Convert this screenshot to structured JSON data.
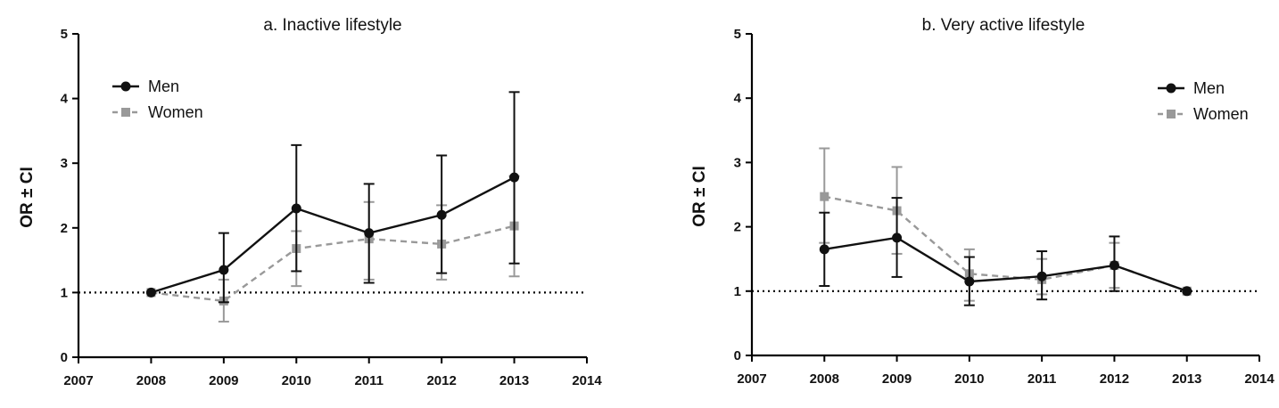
{
  "colors": {
    "men": "#111111",
    "women": "#999999",
    "axis": "#000000",
    "reference": "#000000"
  },
  "chart_data": [
    {
      "type": "line",
      "title": "a. Inactive lifestyle",
      "xlabel": "",
      "ylabel": "OR ± CI",
      "xlim": [
        2007,
        2014
      ],
      "ylim": [
        0,
        5
      ],
      "x_ticks": [
        "2007",
        "2008",
        "2009",
        "2010",
        "2011",
        "2012",
        "2013",
        "2014"
      ],
      "y_ticks": [
        "0",
        "1",
        "2",
        "3",
        "4",
        "5"
      ],
      "reference_line": 1,
      "legend_position": "top-left",
      "x": [
        2008,
        2009,
        2010,
        2011,
        2012,
        2013
      ],
      "series": [
        {
          "name": "Men",
          "marker": "circle",
          "line": "solid",
          "values": [
            1.0,
            1.35,
            2.3,
            1.92,
            2.2,
            2.78
          ],
          "ci_low": [
            1.0,
            0.85,
            1.33,
            1.15,
            1.3,
            1.45
          ],
          "ci_high": [
            1.0,
            1.92,
            3.28,
            2.68,
            3.12,
            4.1
          ]
        },
        {
          "name": "Women",
          "marker": "square",
          "line": "dashed",
          "values": [
            1.0,
            0.87,
            1.68,
            1.83,
            1.75,
            2.03
          ],
          "ci_low": [
            1.0,
            0.55,
            1.1,
            1.2,
            1.2,
            1.25
          ],
          "ci_high": [
            1.0,
            1.2,
            1.95,
            2.4,
            2.35,
            2.8
          ]
        }
      ]
    },
    {
      "type": "line",
      "title": "b. Very active lifestyle",
      "xlabel": "",
      "ylabel": "OR ± CI",
      "xlim": [
        2007,
        2014
      ],
      "ylim": [
        0,
        5
      ],
      "x_ticks": [
        "2007",
        "2008",
        "2009",
        "2010",
        "2011",
        "2012",
        "2013",
        "2014"
      ],
      "y_ticks": [
        "0",
        "1",
        "2",
        "3",
        "4",
        "5"
      ],
      "reference_line": 1,
      "legend_position": "top-right",
      "x": [
        2008,
        2009,
        2010,
        2011,
        2012,
        2013
      ],
      "series": [
        {
          "name": "Men",
          "marker": "circle",
          "line": "solid",
          "values": [
            1.65,
            1.83,
            1.15,
            1.23,
            1.4,
            1.0
          ],
          "ci_low": [
            1.08,
            1.22,
            0.78,
            0.87,
            1.0,
            1.0
          ],
          "ci_high": [
            2.22,
            2.45,
            1.53,
            1.62,
            1.85,
            1.0
          ]
        },
        {
          "name": "Women",
          "marker": "square",
          "line": "dashed",
          "values": [
            2.47,
            2.25,
            1.27,
            1.18,
            1.4,
            1.0
          ],
          "ci_low": [
            1.75,
            1.58,
            0.85,
            0.95,
            1.05,
            1.0
          ],
          "ci_high": [
            3.22,
            2.93,
            1.65,
            1.5,
            1.75,
            1.0
          ]
        }
      ]
    }
  ]
}
